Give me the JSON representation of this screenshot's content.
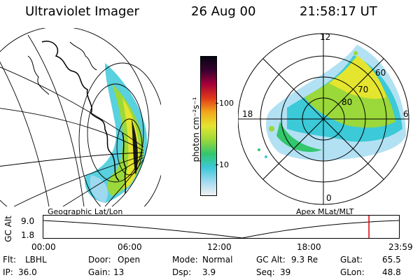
{
  "header": {
    "title": "Ultraviolet Imager",
    "date": "26 Aug 00",
    "time": "21:58:17 UT"
  },
  "left_panel": {
    "caption": "Geographic Lat/Lon"
  },
  "colorbar": {
    "unit_label": "photon cm⁻²s⁻¹",
    "tick_100": "100",
    "tick_10": "10",
    "scale": "log",
    "colors": [
      "#f2f2f2",
      "#9fd9f0",
      "#3cc9d8",
      "#33c66d",
      "#9bd83a",
      "#e5e52f",
      "#f2a81b",
      "#e03a1a",
      "#a8003a",
      "#3a0030",
      "#050510"
    ]
  },
  "right_panel": {
    "caption": "Apex MLat/MLT",
    "mlt_labels": {
      "top": "12",
      "left": "18",
      "right": "6",
      "bottom": "0"
    },
    "lat_labels": [
      "60",
      "70",
      "80"
    ]
  },
  "timeline": {
    "ylabel": "GC Alt",
    "y_ticks": [
      "9.0",
      "1.8"
    ],
    "x_ticks": [
      "00:00",
      "06:00",
      "12:00",
      "18:00",
      "23:59"
    ],
    "current_time_fraction": 0.9155,
    "marker_color": "#dd0000"
  },
  "info": {
    "flt_label": "Flt:",
    "flt_value": "LBHL",
    "door_label": "Door:",
    "door_value": "Open",
    "mode_label": "Mode:",
    "mode_value": "Normal",
    "gcalt_label": "GC Alt:",
    "gcalt_value": "9.3 Re",
    "glat_label": "GLat:",
    "glat_value": "65.5",
    "ip_label": "IP:",
    "ip_value": "36.0",
    "gain_label": "Gain:",
    "gain_value": "13",
    "dsp_label": "Dsp:",
    "dsp_value": "3.9",
    "seq_label": "Seq:",
    "seq_value": "39",
    "glon_label": "GLon:",
    "glon_value": "48.8"
  }
}
